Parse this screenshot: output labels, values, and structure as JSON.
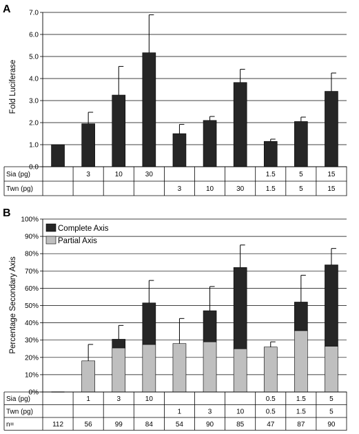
{
  "chart_data": [
    {
      "panel": "A",
      "type": "bar",
      "ylabel": "Fold Luciferase",
      "ylim": [
        0,
        7
      ],
      "yticks": [
        "0.0",
        "1.0",
        "2.0",
        "3.0",
        "4.0",
        "5.0",
        "6.0",
        "7.0"
      ],
      "grid": "horizontal",
      "values": [
        1.0,
        1.95,
        3.25,
        5.17,
        1.5,
        2.1,
        3.82,
        1.15,
        2.05,
        3.42
      ],
      "errors": [
        0,
        0.52,
        1.3,
        1.72,
        0.42,
        0.18,
        0.6,
        0.1,
        0.2,
        0.83
      ],
      "color": "#262626",
      "table": [
        {
          "label": "Sia (pg)",
          "cells": [
            "",
            "3",
            "10",
            "30",
            "",
            "",
            "",
            "1.5",
            "5",
            "15"
          ]
        },
        {
          "label": "Twn (pg)",
          "cells": [
            "",
            "",
            "",
            "",
            "3",
            "10",
            "30",
            "1.5",
            "5",
            "15"
          ]
        }
      ]
    },
    {
      "panel": "B",
      "type": "bar",
      "stacked": true,
      "ylabel": "Percentage Secondary Axis",
      "ylim": [
        0,
        100
      ],
      "yticks": [
        "0%",
        "10%",
        "20%",
        "30%",
        "40%",
        "50%",
        "60%",
        "70%",
        "80%",
        "90%",
        "100%"
      ],
      "grid": "horizontal",
      "legend_position": "top-left",
      "series": [
        {
          "name": "Partial Axis",
          "color": "#bfbfbf",
          "values": [
            0,
            18,
            25.5,
            27.5,
            28,
            29,
            25,
            26,
            35.5,
            26.5
          ]
        },
        {
          "name": "Complete Axis",
          "color": "#262626",
          "values": [
            0,
            0,
            5,
            24,
            0,
            18,
            47,
            0,
            16.5,
            47
          ]
        }
      ],
      "errors": [
        0,
        9.5,
        8,
        13,
        14.5,
        14,
        13,
        3,
        15.5,
        9.5
      ],
      "table": [
        {
          "label": "Sia (pg)",
          "cells": [
            "",
            "1",
            "3",
            "10",
            "",
            "",
            "",
            "0.5",
            "1.5",
            "5"
          ]
        },
        {
          "label": "Twn (pg)",
          "cells": [
            "",
            "",
            "",
            "",
            "1",
            "3",
            "10",
            "0.5",
            "1.5",
            "5"
          ]
        },
        {
          "label": "n=",
          "cells": [
            "112",
            "56",
            "99",
            "84",
            "54",
            "90",
            "85",
            "47",
            "87",
            "90"
          ]
        }
      ]
    }
  ]
}
